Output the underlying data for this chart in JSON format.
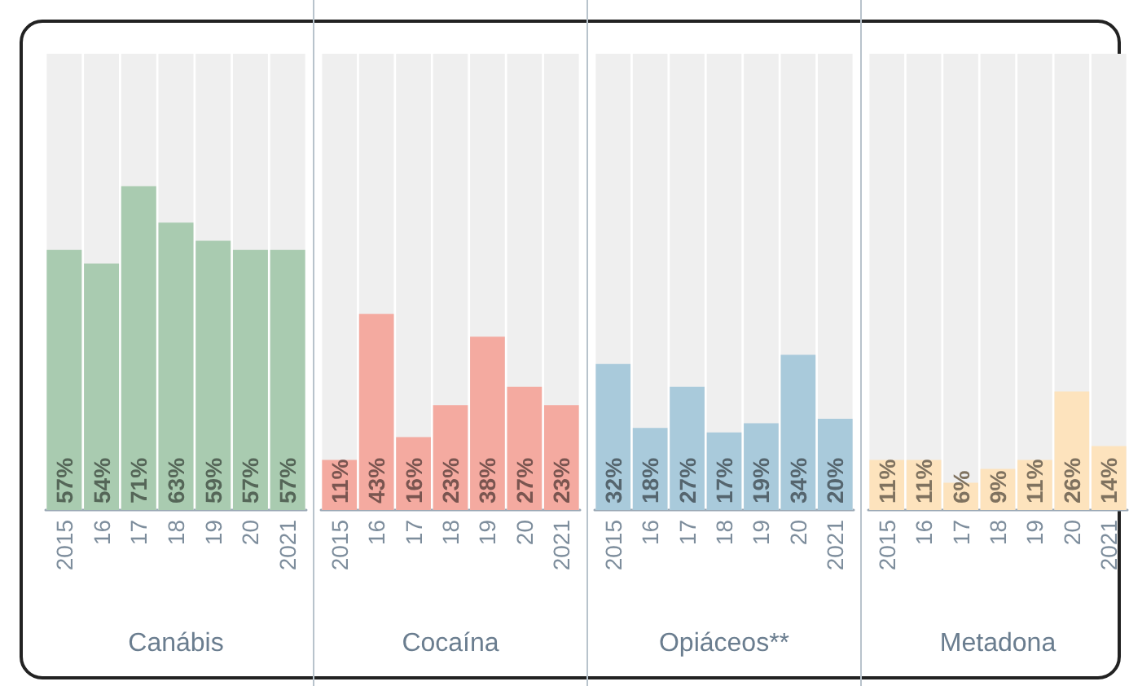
{
  "chart_data": [
    {
      "type": "bar",
      "xlabel": "Canábis",
      "categories": [
        "2015",
        "16",
        "17",
        "18",
        "19",
        "20",
        "2021"
      ],
      "values": [
        57,
        54,
        71,
        63,
        59,
        57,
        57
      ],
      "value_labels": [
        "57%",
        "54%",
        "71%",
        "63%",
        "59%",
        "57%",
        "57%"
      ],
      "color": "#a9cbb0",
      "ylim": [
        0,
        100
      ]
    },
    {
      "type": "bar",
      "xlabel": "Cocaína",
      "categories": [
        "2015",
        "16",
        "17",
        "18",
        "19",
        "20",
        "2021"
      ],
      "values": [
        11,
        43,
        16,
        23,
        38,
        27,
        23
      ],
      "value_labels": [
        "11%",
        "43%",
        "16%",
        "23%",
        "38%",
        "27%",
        "23%"
      ],
      "color": "#f4aaa0",
      "ylim": [
        0,
        100
      ]
    },
    {
      "type": "bar",
      "xlabel": "Opiáceos**",
      "categories": [
        "2015",
        "16",
        "17",
        "18",
        "19",
        "20",
        "2021"
      ],
      "values": [
        32,
        18,
        27,
        17,
        19,
        34,
        20
      ],
      "value_labels": [
        "32%",
        "18%",
        "27%",
        "17%",
        "19%",
        "34%",
        "20%"
      ],
      "color": "#a9cadb",
      "ylim": [
        0,
        100
      ]
    },
    {
      "type": "bar",
      "xlabel": "Metadona",
      "categories": [
        "2015",
        "16",
        "17",
        "18",
        "19",
        "20",
        "2021"
      ],
      "values": [
        11,
        11,
        6,
        9,
        11,
        26,
        14
      ],
      "value_labels": [
        "11%",
        "11%",
        "6%",
        "9%",
        "11%",
        "26%",
        "14%"
      ],
      "color": "#fde3bd",
      "ylim": [
        0,
        100
      ]
    }
  ]
}
